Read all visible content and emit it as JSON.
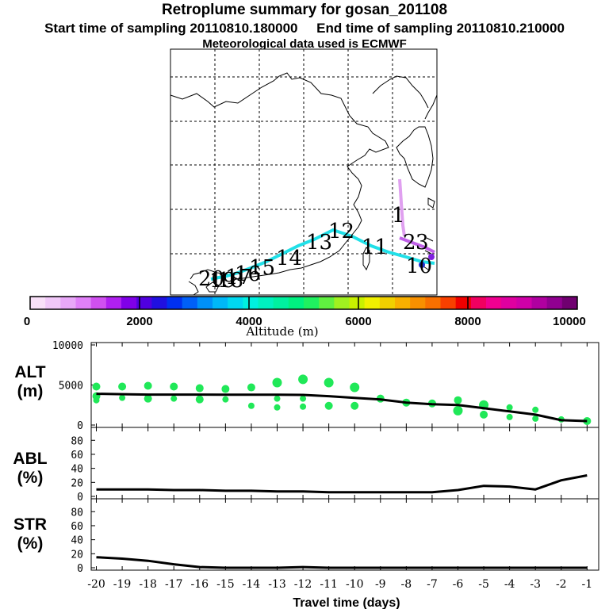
{
  "header": {
    "title": "Retroplume summary for gosan_201108",
    "start_label": "Start time of sampling 20110810.180000",
    "end_label": "End time of sampling 20110810.210000",
    "met_label": "Meteorological data used is ECMWF"
  },
  "map": {
    "trajectory_day_labels": [
      "20",
      "19",
      "18",
      "17",
      "16",
      "15",
      "14",
      "13",
      "12",
      "11",
      "10",
      "3",
      "2",
      "1"
    ],
    "colors": {
      "cyan": "#20e0e8",
      "violet": "#c060e8",
      "pink": "#e0a0f0",
      "blue": "#2030d0"
    }
  },
  "colorbar": {
    "title": "Altitude (m)",
    "ticks": [
      "0",
      "2000",
      "4000",
      "6000",
      "8000",
      "10000"
    ],
    "colors": [
      "#f8e0f8",
      "#f0c8f8",
      "#e8a8f8",
      "#e080f8",
      "#d050f0",
      "#b020f0",
      "#8000e8",
      "#5000e0",
      "#2010e0",
      "#0030f0",
      "#0060f8",
      "#0090f8",
      "#00b8f8",
      "#00d8f0",
      "#00f0e0",
      "#00f0c0",
      "#00f0a0",
      "#00f080",
      "#20f060",
      "#60f040",
      "#a0f020",
      "#c8f000",
      "#f0f000",
      "#f0d000",
      "#f8b000",
      "#f89000",
      "#f87000",
      "#f84000",
      "#f00000",
      "#f00060",
      "#f00090",
      "#e000a0",
      "#d000a8",
      "#b000a0",
      "#900090",
      "#700070"
    ]
  },
  "panels": {
    "alt_label": "ALT",
    "alt_unit": "(m)",
    "abl_label": "ABL",
    "abl_unit": "(%)",
    "str_label": "STR",
    "str_unit": "(%)",
    "xlabel": "Travel time (days)"
  },
  "chart_data": [
    {
      "type": "line",
      "title": "ALT",
      "ylabel": "ALT (m)",
      "xlabel": "Travel time (days)",
      "xlim": [
        -20,
        -1
      ],
      "ylim": [
        0,
        10000
      ],
      "yticks": [
        0,
        5000,
        10000
      ],
      "line": {
        "x": [
          -20,
          -19,
          -18,
          -17,
          -16,
          -15,
          -14,
          -13,
          -12,
          -11,
          -10,
          -9,
          -8,
          -7,
          -6,
          -5,
          -4,
          -3,
          -2,
          -1
        ],
        "y": [
          3900,
          3850,
          3800,
          3800,
          3800,
          3780,
          3780,
          3780,
          3760,
          3600,
          3400,
          3200,
          2800,
          2600,
          2500,
          2100,
          1700,
          1300,
          600,
          500
        ]
      },
      "scatter": {
        "color": "#20e858",
        "x": [
          -20,
          -20,
          -20,
          -19,
          -19,
          -18,
          -18,
          -17,
          -17,
          -16,
          -16,
          -15,
          -15,
          -14,
          -14,
          -13,
          -13,
          -13,
          -12,
          -12,
          -12,
          -11,
          -11,
          -10,
          -10,
          -9,
          -8,
          -7,
          -6,
          -6,
          -5,
          -5,
          -4,
          -4,
          -3,
          -3,
          -2,
          -1
        ],
        "y": [
          4800,
          3600,
          3100,
          4800,
          3400,
          4900,
          3300,
          4800,
          3300,
          4600,
          3200,
          4500,
          3200,
          4700,
          2400,
          5300,
          3300,
          2200,
          5700,
          3300,
          2300,
          5300,
          2400,
          4700,
          2400,
          3300,
          2800,
          2700,
          3100,
          1800,
          2500,
          1300,
          2200,
          1000,
          1900,
          800,
          700,
          500
        ],
        "sizes": [
          4,
          4,
          3,
          4,
          3,
          4,
          4,
          4,
          3,
          4,
          4,
          4,
          3,
          4,
          3,
          5,
          3,
          3,
          5,
          3,
          3,
          5,
          4,
          5,
          4,
          4,
          4,
          4,
          4,
          5,
          5,
          4,
          3,
          3,
          3,
          3,
          3,
          4
        ]
      }
    },
    {
      "type": "line",
      "title": "ABL",
      "ylabel": "ABL (%)",
      "xlabel": "Travel time (days)",
      "xlim": [
        -20,
        -1
      ],
      "ylim": [
        0,
        95
      ],
      "yticks": [
        0,
        20,
        40,
        60,
        80
      ],
      "x": [
        -20,
        -19,
        -18,
        -17,
        -16,
        -15,
        -14,
        -13,
        -12,
        -11,
        -10,
        -9,
        -8,
        -7,
        -6,
        -5,
        -4,
        -3,
        -2,
        -1
      ],
      "y": [
        10,
        10,
        10,
        9,
        9,
        8,
        8,
        7,
        7,
        6,
        6,
        6,
        6,
        6,
        9,
        15,
        14,
        10,
        23,
        30
      ]
    },
    {
      "type": "line",
      "title": "STR",
      "ylabel": "STR (%)",
      "xlabel": "Travel time (days)",
      "xlim": [
        -20,
        -1
      ],
      "ylim": [
        0,
        95
      ],
      "yticks": [
        0,
        20,
        40,
        60,
        80
      ],
      "xticks": [
        -20,
        -19,
        -18,
        -17,
        -16,
        -15,
        -14,
        -13,
        -12,
        -11,
        -10,
        -9,
        -8,
        -7,
        -6,
        -5,
        -4,
        -3,
        -2,
        -1
      ],
      "x": [
        -20,
        -19,
        -18,
        -17,
        -16,
        -15,
        -14,
        -13,
        -12,
        -11,
        -10,
        -9,
        -8,
        -7,
        -6,
        -5,
        -4,
        -3,
        -2,
        -1
      ],
      "y": [
        15,
        13,
        10,
        5,
        1,
        0,
        0,
        0,
        1,
        0,
        0,
        0,
        0,
        0,
        0,
        0,
        0,
        0,
        0,
        0
      ]
    }
  ]
}
